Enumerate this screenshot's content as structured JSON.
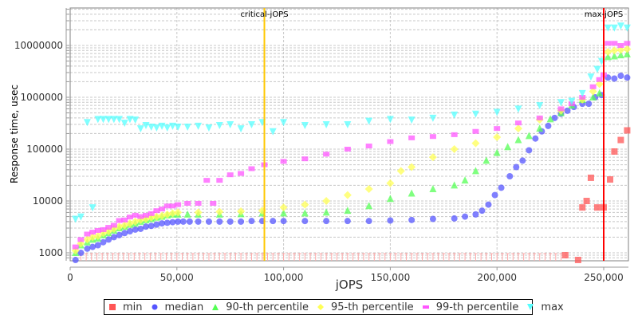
{
  "chart_data": {
    "type": "scatter",
    "title": "",
    "xlabel": "jOPS",
    "ylabel": "Response time, usec",
    "yscale": "log",
    "xlim": [
      0,
      262000
    ],
    "ylim": [
      700,
      40000000
    ],
    "x_ticks": [
      0,
      50000,
      100000,
      150000,
      200000,
      250000
    ],
    "x_tick_labels": [
      "0",
      "50,000",
      "100,000",
      "150,000",
      "200,000",
      "250,000"
    ],
    "y_ticks": [
      1000,
      10000,
      100000,
      1000000,
      10000000
    ],
    "y_tick_labels": [
      "1000",
      "10000",
      "100000",
      "1000000",
      "10000000"
    ],
    "grid": true,
    "legend_position": "bottom",
    "markers": [
      {
        "name": "critical-jOPS",
        "x": 91000,
        "color": "#ffc800"
      },
      {
        "name": "max-jOPS",
        "x": 250000,
        "color": "#ff0000"
      }
    ],
    "series": [
      {
        "name": "min",
        "color": "#ff5555",
        "symbol": "square",
        "note": "most points at <=1000 usec shown as clipped bars at axis bottom",
        "points": [
          [
            232000,
            900
          ],
          [
            238000,
            700
          ],
          [
            240000,
            7500
          ],
          [
            242000,
            10000
          ],
          [
            244000,
            28000
          ],
          [
            247000,
            7500
          ],
          [
            250000,
            7500
          ],
          [
            253000,
            26000
          ],
          [
            255000,
            90000
          ],
          [
            258000,
            150000
          ],
          [
            261000,
            230000
          ]
        ]
      },
      {
        "name": "median",
        "color": "#5555ff",
        "symbol": "circle",
        "points": [
          [
            2500,
            700
          ],
          [
            5000,
            1000
          ],
          [
            8000,
            1200
          ],
          [
            10500,
            1300
          ],
          [
            13000,
            1400
          ],
          [
            15500,
            1600
          ],
          [
            18000,
            1800
          ],
          [
            20500,
            2000
          ],
          [
            23000,
            2200
          ],
          [
            25500,
            2400
          ],
          [
            28000,
            2600
          ],
          [
            30500,
            2800
          ],
          [
            33000,
            2900
          ],
          [
            35500,
            3200
          ],
          [
            38000,
            3300
          ],
          [
            40500,
            3500
          ],
          [
            43000,
            3700
          ],
          [
            45500,
            3800
          ],
          [
            48000,
            3900
          ],
          [
            50500,
            4000
          ],
          [
            53000,
            4000
          ],
          [
            56000,
            4000
          ],
          [
            60000,
            4000
          ],
          [
            65000,
            4000
          ],
          [
            70000,
            4000
          ],
          [
            75000,
            4000
          ],
          [
            80000,
            4000
          ],
          [
            85000,
            4100
          ],
          [
            90000,
            4100
          ],
          [
            95000,
            4100
          ],
          [
            100000,
            4100
          ],
          [
            110000,
            4100
          ],
          [
            120000,
            4100
          ],
          [
            130000,
            4100
          ],
          [
            140000,
            4100
          ],
          [
            150000,
            4200
          ],
          [
            160000,
            4300
          ],
          [
            170000,
            4500
          ],
          [
            180000,
            4600
          ],
          [
            185000,
            5000
          ],
          [
            190000,
            5500
          ],
          [
            193000,
            6500
          ],
          [
            196000,
            8500
          ],
          [
            199000,
            13000
          ],
          [
            202000,
            18000
          ],
          [
            206000,
            30000
          ],
          [
            209000,
            45000
          ],
          [
            212000,
            60000
          ],
          [
            215000,
            95000
          ],
          [
            218000,
            160000
          ],
          [
            221000,
            220000
          ],
          [
            224000,
            280000
          ],
          [
            227000,
            400000
          ],
          [
            230000,
            480000
          ],
          [
            233000,
            550000
          ],
          [
            236000,
            650000
          ],
          [
            240000,
            750000
          ],
          [
            243000,
            750000
          ],
          [
            246000,
            1000000
          ],
          [
            249000,
            1100000
          ],
          [
            252000,
            2400000
          ],
          [
            255000,
            2300000
          ],
          [
            258000,
            2600000
          ],
          [
            261000,
            2400000
          ]
        ]
      },
      {
        "name": "90-th percentile",
        "color": "#55ff55",
        "symbol": "triangle-up",
        "points": [
          [
            2500,
            1000
          ],
          [
            5000,
            1400
          ],
          [
            8000,
            1600
          ],
          [
            10500,
            1800
          ],
          [
            13000,
            1900
          ],
          [
            15500,
            2200
          ],
          [
            18000,
            2400
          ],
          [
            20500,
            2700
          ],
          [
            23000,
            3000
          ],
          [
            25500,
            3200
          ],
          [
            28000,
            3500
          ],
          [
            30500,
            3700
          ],
          [
            33000,
            4000
          ],
          [
            35500,
            4300
          ],
          [
            38000,
            4500
          ],
          [
            40500,
            4800
          ],
          [
            43000,
            5000
          ],
          [
            45500,
            5300
          ],
          [
            48000,
            5500
          ],
          [
            50500,
            5500
          ],
          [
            55000,
            5500
          ],
          [
            60000,
            5500
          ],
          [
            70000,
            5500
          ],
          [
            80000,
            5600
          ],
          [
            90000,
            5800
          ],
          [
            100000,
            5800
          ],
          [
            110000,
            5800
          ],
          [
            120000,
            6000
          ],
          [
            130000,
            6500
          ],
          [
            140000,
            8000
          ],
          [
            150000,
            11000
          ],
          [
            160000,
            14000
          ],
          [
            170000,
            17000
          ],
          [
            180000,
            20000
          ],
          [
            185000,
            25000
          ],
          [
            190000,
            38000
          ],
          [
            195000,
            60000
          ],
          [
            200000,
            85000
          ],
          [
            205000,
            110000
          ],
          [
            210000,
            150000
          ],
          [
            215000,
            180000
          ],
          [
            220000,
            250000
          ],
          [
            225000,
            380000
          ],
          [
            230000,
            500000
          ],
          [
            235000,
            700000
          ],
          [
            240000,
            900000
          ],
          [
            245000,
            1000000
          ],
          [
            248000,
            1200000
          ],
          [
            252000,
            6000000
          ],
          [
            255000,
            6200000
          ],
          [
            258000,
            6500000
          ],
          [
            261000,
            6800000
          ]
        ]
      },
      {
        "name": "95-th percentile",
        "color": "#ffff55",
        "symbol": "diamond",
        "points": [
          [
            2500,
            1100
          ],
          [
            5000,
            1500
          ],
          [
            8000,
            1800
          ],
          [
            10500,
            2000
          ],
          [
            13000,
            2100
          ],
          [
            15500,
            2400
          ],
          [
            18000,
            2600
          ],
          [
            20500,
            2900
          ],
          [
            23000,
            3200
          ],
          [
            25500,
            3400
          ],
          [
            28000,
            3700
          ],
          [
            30500,
            4000
          ],
          [
            33000,
            4300
          ],
          [
            35500,
            4500
          ],
          [
            38000,
            4800
          ],
          [
            40500,
            5000
          ],
          [
            43000,
            5200
          ],
          [
            45500,
            5500
          ],
          [
            48000,
            5800
          ],
          [
            50500,
            6000
          ],
          [
            60000,
            6000
          ],
          [
            70000,
            6200
          ],
          [
            80000,
            6300
          ],
          [
            90000,
            6500
          ],
          [
            100000,
            7500
          ],
          [
            110000,
            8500
          ],
          [
            120000,
            10000
          ],
          [
            130000,
            13000
          ],
          [
            140000,
            17000
          ],
          [
            150000,
            22000
          ],
          [
            155000,
            38000
          ],
          [
            160000,
            45000
          ],
          [
            170000,
            70000
          ],
          [
            180000,
            100000
          ],
          [
            190000,
            130000
          ],
          [
            200000,
            170000
          ],
          [
            210000,
            250000
          ],
          [
            220000,
            370000
          ],
          [
            230000,
            550000
          ],
          [
            240000,
            900000
          ],
          [
            245000,
            1300000
          ],
          [
            248000,
            1800000
          ],
          [
            252000,
            7500000
          ],
          [
            255000,
            8000000
          ],
          [
            258000,
            8200000
          ],
          [
            261000,
            8500000
          ]
        ]
      },
      {
        "name": "99-th percentile",
        "color": "#ff55ff",
        "symbol": "square-plus",
        "points": [
          [
            2500,
            1300
          ],
          [
            5000,
            1800
          ],
          [
            8000,
            2300
          ],
          [
            10500,
            2500
          ],
          [
            13000,
            2700
          ],
          [
            15500,
            2800
          ],
          [
            18000,
            3100
          ],
          [
            20500,
            3400
          ],
          [
            23000,
            4200
          ],
          [
            25500,
            4300
          ],
          [
            28000,
            4900
          ],
          [
            30500,
            5300
          ],
          [
            33000,
            5000
          ],
          [
            35500,
            5300
          ],
          [
            38000,
            5700
          ],
          [
            40500,
            6500
          ],
          [
            43000,
            7000
          ],
          [
            45500,
            8000
          ],
          [
            48000,
            8000
          ],
          [
            50500,
            8500
          ],
          [
            55000,
            9000
          ],
          [
            60000,
            9000
          ],
          [
            64000,
            25000
          ],
          [
            67000,
            9000
          ],
          [
            70000,
            25000
          ],
          [
            75000,
            32000
          ],
          [
            80000,
            34000
          ],
          [
            85000,
            42000
          ],
          [
            91000,
            50000
          ],
          [
            100000,
            58000
          ],
          [
            110000,
            65000
          ],
          [
            120000,
            80000
          ],
          [
            130000,
            100000
          ],
          [
            140000,
            115000
          ],
          [
            150000,
            140000
          ],
          [
            160000,
            165000
          ],
          [
            170000,
            175000
          ],
          [
            180000,
            190000
          ],
          [
            190000,
            220000
          ],
          [
            200000,
            250000
          ],
          [
            210000,
            320000
          ],
          [
            220000,
            400000
          ],
          [
            230000,
            600000
          ],
          [
            235000,
            750000
          ],
          [
            240000,
            1000000
          ],
          [
            245000,
            1600000
          ],
          [
            248000,
            2200000
          ],
          [
            250000,
            2700000
          ],
          [
            252000,
            11000000
          ],
          [
            255000,
            11000000
          ],
          [
            258000,
            10000000
          ],
          [
            261000,
            11000000
          ]
        ]
      },
      {
        "name": "max",
        "color": "#55ffff",
        "symbol": "triangle-down",
        "points": [
          [
            2500,
            4500
          ],
          [
            5000,
            5000
          ],
          [
            10500,
            7500
          ],
          [
            8000,
            330000
          ],
          [
            13000,
            380000
          ],
          [
            15500,
            380000
          ],
          [
            18000,
            380000
          ],
          [
            20500,
            380000
          ],
          [
            23000,
            380000
          ],
          [
            25500,
            320000
          ],
          [
            28000,
            380000
          ],
          [
            30500,
            370000
          ],
          [
            33000,
            250000
          ],
          [
            35500,
            290000
          ],
          [
            38000,
            270000
          ],
          [
            40500,
            260000
          ],
          [
            43000,
            280000
          ],
          [
            45500,
            260000
          ],
          [
            48000,
            280000
          ],
          [
            50500,
            270000
          ],
          [
            55000,
            270000
          ],
          [
            60000,
            280000
          ],
          [
            65000,
            260000
          ],
          [
            70000,
            290000
          ],
          [
            75000,
            300000
          ],
          [
            80000,
            250000
          ],
          [
            85000,
            300000
          ],
          [
            90000,
            330000
          ],
          [
            95000,
            220000
          ],
          [
            100000,
            330000
          ],
          [
            110000,
            290000
          ],
          [
            120000,
            300000
          ],
          [
            130000,
            300000
          ],
          [
            140000,
            350000
          ],
          [
            150000,
            380000
          ],
          [
            160000,
            370000
          ],
          [
            170000,
            400000
          ],
          [
            180000,
            460000
          ],
          [
            190000,
            480000
          ],
          [
            200000,
            520000
          ],
          [
            210000,
            600000
          ],
          [
            220000,
            700000
          ],
          [
            230000,
            800000
          ],
          [
            235000,
            850000
          ],
          [
            240000,
            1200000
          ],
          [
            244000,
            2500000
          ],
          [
            247000,
            3500000
          ],
          [
            249000,
            5000000
          ],
          [
            252000,
            22000000
          ],
          [
            255000,
            22000000
          ],
          [
            258000,
            24000000
          ],
          [
            261000,
            22000000
          ]
        ]
      }
    ]
  },
  "legend": {
    "items": [
      {
        "label": "min",
        "color": "#ff5555",
        "symbol": "square"
      },
      {
        "label": "median",
        "color": "#5555ff",
        "symbol": "circle"
      },
      {
        "label": "90-th percentile",
        "color": "#55ff55",
        "symbol": "triangle-up"
      },
      {
        "label": "95-th percentile",
        "color": "#ffff55",
        "symbol": "diamond"
      },
      {
        "label": "99-th percentile",
        "color": "#ff55ff",
        "symbol": "dash"
      },
      {
        "label": "max",
        "color": "#55ffff",
        "symbol": "triangle-down"
      }
    ]
  }
}
